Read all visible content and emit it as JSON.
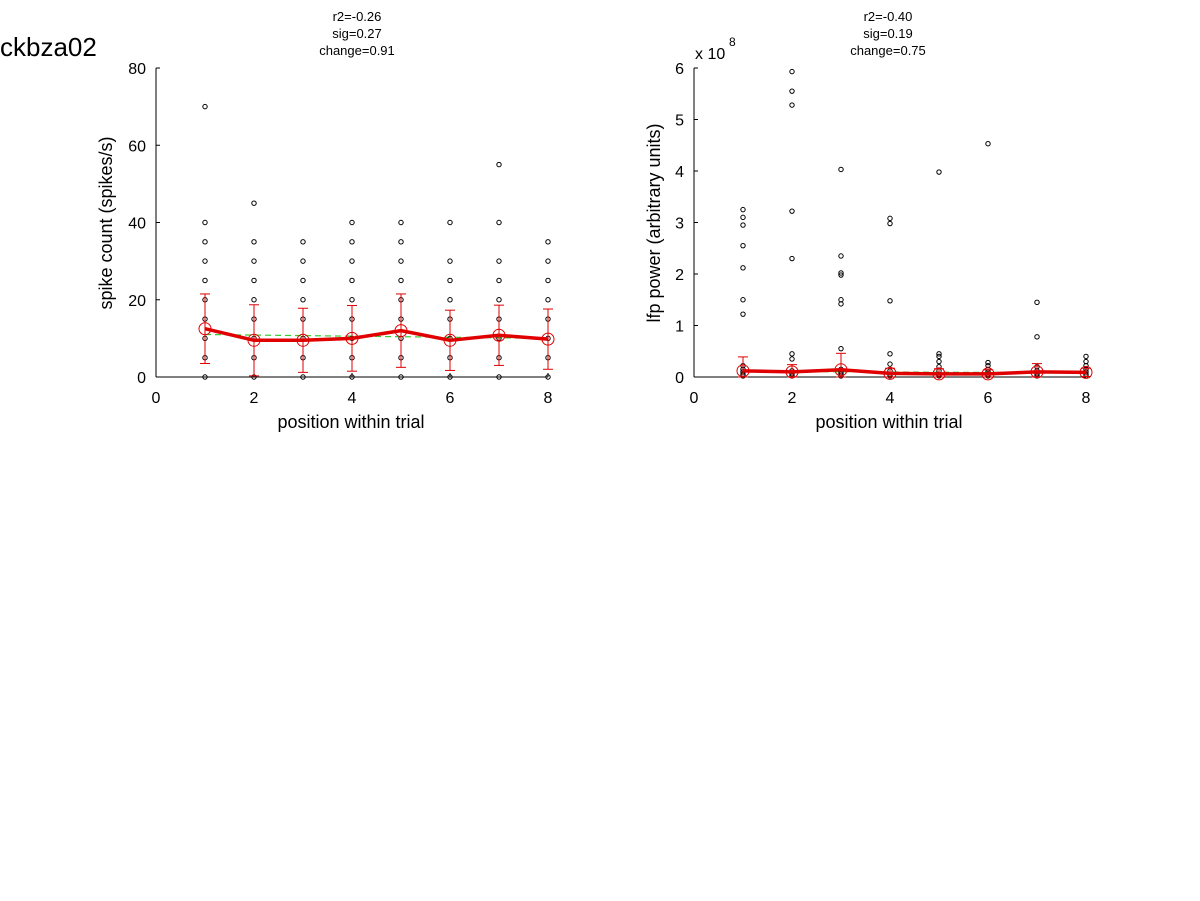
{
  "page": {
    "title": "ckbza02"
  },
  "colors": {
    "mean_line": "#e00000",
    "fit_line": "#33cc33",
    "points": "#000000",
    "background": "#ffffff"
  },
  "chart_data": [
    {
      "type": "scatter",
      "stats": [
        "r2=-0.26",
        "sig=0.27",
        "change=0.91"
      ],
      "xlabel": "position within trial",
      "ylabel": "spike count (spikes/s)",
      "exponent_label": "",
      "exponent_power": "",
      "xlim": [
        0,
        8
      ],
      "ylim": [
        0,
        80
      ],
      "xticks": [
        0,
        2,
        4,
        6,
        8
      ],
      "yticks": [
        0,
        20,
        40,
        60,
        80
      ],
      "xtick_labels": [
        "0",
        "2",
        "4",
        "6",
        "8"
      ],
      "ytick_labels": [
        "0",
        "20",
        "40",
        "60",
        "80"
      ],
      "grid": false,
      "points": [
        [
          1,
          0
        ],
        [
          1,
          5
        ],
        [
          1,
          10
        ],
        [
          1,
          15
        ],
        [
          1,
          20
        ],
        [
          1,
          25
        ],
        [
          1,
          30
        ],
        [
          1,
          35
        ],
        [
          1,
          40
        ],
        [
          1,
          70
        ],
        [
          2,
          0
        ],
        [
          2,
          5
        ],
        [
          2,
          10
        ],
        [
          2,
          15
        ],
        [
          2,
          20
        ],
        [
          2,
          25
        ],
        [
          2,
          30
        ],
        [
          2,
          35
        ],
        [
          2,
          45
        ],
        [
          3,
          0
        ],
        [
          3,
          5
        ],
        [
          3,
          10
        ],
        [
          3,
          15
        ],
        [
          3,
          20
        ],
        [
          3,
          25
        ],
        [
          3,
          30
        ],
        [
          3,
          35
        ],
        [
          4,
          0
        ],
        [
          4,
          5
        ],
        [
          4,
          10
        ],
        [
          4,
          15
        ],
        [
          4,
          20
        ],
        [
          4,
          25
        ],
        [
          4,
          30
        ],
        [
          4,
          35
        ],
        [
          4,
          40
        ],
        [
          5,
          0
        ],
        [
          5,
          5
        ],
        [
          5,
          10
        ],
        [
          5,
          15
        ],
        [
          5,
          20
        ],
        [
          5,
          25
        ],
        [
          5,
          30
        ],
        [
          5,
          35
        ],
        [
          5,
          40
        ],
        [
          6,
          0
        ],
        [
          6,
          5
        ],
        [
          6,
          10
        ],
        [
          6,
          15
        ],
        [
          6,
          20
        ],
        [
          6,
          25
        ],
        [
          6,
          30
        ],
        [
          6,
          40
        ],
        [
          7,
          0
        ],
        [
          7,
          5
        ],
        [
          7,
          10
        ],
        [
          7,
          15
        ],
        [
          7,
          20
        ],
        [
          7,
          25
        ],
        [
          7,
          30
        ],
        [
          7,
          40
        ],
        [
          7,
          55
        ],
        [
          8,
          0
        ],
        [
          8,
          5
        ],
        [
          8,
          10
        ],
        [
          8,
          15
        ],
        [
          8,
          20
        ],
        [
          8,
          25
        ],
        [
          8,
          30
        ],
        [
          8,
          35
        ]
      ],
      "mean": {
        "x": [
          1,
          2,
          3,
          4,
          5,
          6,
          7,
          8
        ],
        "y": [
          12.5,
          9.5,
          9.5,
          10,
          12,
          9.5,
          10.8,
          9.8
        ]
      },
      "error": [
        9,
        9.2,
        8.3,
        8.5,
        9.5,
        7.8,
        7.8,
        7.8
      ],
      "fit": {
        "x": [
          1,
          8
        ],
        "y": [
          11,
          10
        ]
      }
    },
    {
      "type": "scatter",
      "stats": [
        "r2=-0.40",
        "sig=0.19",
        "change=0.75"
      ],
      "xlabel": "position within trial",
      "ylabel": "lfp power (arbitrary units)",
      "exponent_label": "x 10",
      "exponent_power": "8",
      "xlim": [
        0,
        8
      ],
      "ylim": [
        0,
        6
      ],
      "xticks": [
        0,
        2,
        4,
        6,
        8
      ],
      "yticks": [
        0,
        1,
        2,
        3,
        4,
        5,
        6
      ],
      "xtick_labels": [
        "0",
        "2",
        "4",
        "6",
        "8"
      ],
      "ytick_labels": [
        "0",
        "1",
        "2",
        "3",
        "4",
        "5",
        "6"
      ],
      "grid": false,
      "points": [
        [
          1,
          0.02
        ],
        [
          1,
          0.05
        ],
        [
          1,
          0.1
        ],
        [
          1,
          0.15
        ],
        [
          1,
          0.22
        ],
        [
          1,
          1.22
        ],
        [
          1,
          1.5
        ],
        [
          1,
          2.12
        ],
        [
          1,
          2.55
        ],
        [
          1,
          2.95
        ],
        [
          1,
          3.1
        ],
        [
          1,
          3.25
        ],
        [
          2,
          0.02
        ],
        [
          2,
          0.06
        ],
        [
          2,
          0.12
        ],
        [
          2,
          0.35
        ],
        [
          2,
          0.45
        ],
        [
          2,
          2.3
        ],
        [
          2,
          3.22
        ],
        [
          2,
          5.28
        ],
        [
          2,
          5.55
        ],
        [
          2,
          5.93
        ],
        [
          3,
          0.02
        ],
        [
          3,
          0.06
        ],
        [
          3,
          0.1
        ],
        [
          3,
          0.15
        ],
        [
          3,
          0.55
        ],
        [
          3,
          1.42
        ],
        [
          3,
          1.5
        ],
        [
          3,
          1.98
        ],
        [
          3,
          2.02
        ],
        [
          3,
          2.35
        ],
        [
          3,
          4.03
        ],
        [
          4,
          0.02
        ],
        [
          4,
          0.05
        ],
        [
          4,
          0.12
        ],
        [
          4,
          0.25
        ],
        [
          4,
          0.45
        ],
        [
          4,
          1.48
        ],
        [
          4,
          2.98
        ],
        [
          4,
          3.08
        ],
        [
          5,
          0.02
        ],
        [
          5,
          0.05
        ],
        [
          5,
          0.12
        ],
        [
          5,
          0.2
        ],
        [
          5,
          0.3
        ],
        [
          5,
          0.4
        ],
        [
          5,
          0.45
        ],
        [
          5,
          3.98
        ],
        [
          6,
          0.02
        ],
        [
          6,
          0.05
        ],
        [
          6,
          0.1
        ],
        [
          6,
          0.15
        ],
        [
          6,
          0.22
        ],
        [
          6,
          0.28
        ],
        [
          6,
          4.53
        ],
        [
          7,
          0.02
        ],
        [
          7,
          0.06
        ],
        [
          7,
          0.12
        ],
        [
          7,
          0.2
        ],
        [
          7,
          0.78
        ],
        [
          7,
          1.45
        ],
        [
          8,
          0.02
        ],
        [
          8,
          0.05
        ],
        [
          8,
          0.1
        ],
        [
          8,
          0.15
        ],
        [
          8,
          0.22
        ],
        [
          8,
          0.3
        ],
        [
          8,
          0.4
        ]
      ],
      "mean": {
        "x": [
          1,
          2,
          3,
          4,
          5,
          6,
          7,
          8
        ],
        "y": [
          0.12,
          0.1,
          0.14,
          0.07,
          0.06,
          0.06,
          0.1,
          0.09
        ]
      },
      "error": [
        0.27,
        0.14,
        0.32,
        0.1,
        0.1,
        0.08,
        0.16,
        0.08
      ],
      "fit": {
        "x": [
          1,
          8
        ],
        "y": [
          0.11,
          0.08
        ]
      }
    }
  ]
}
